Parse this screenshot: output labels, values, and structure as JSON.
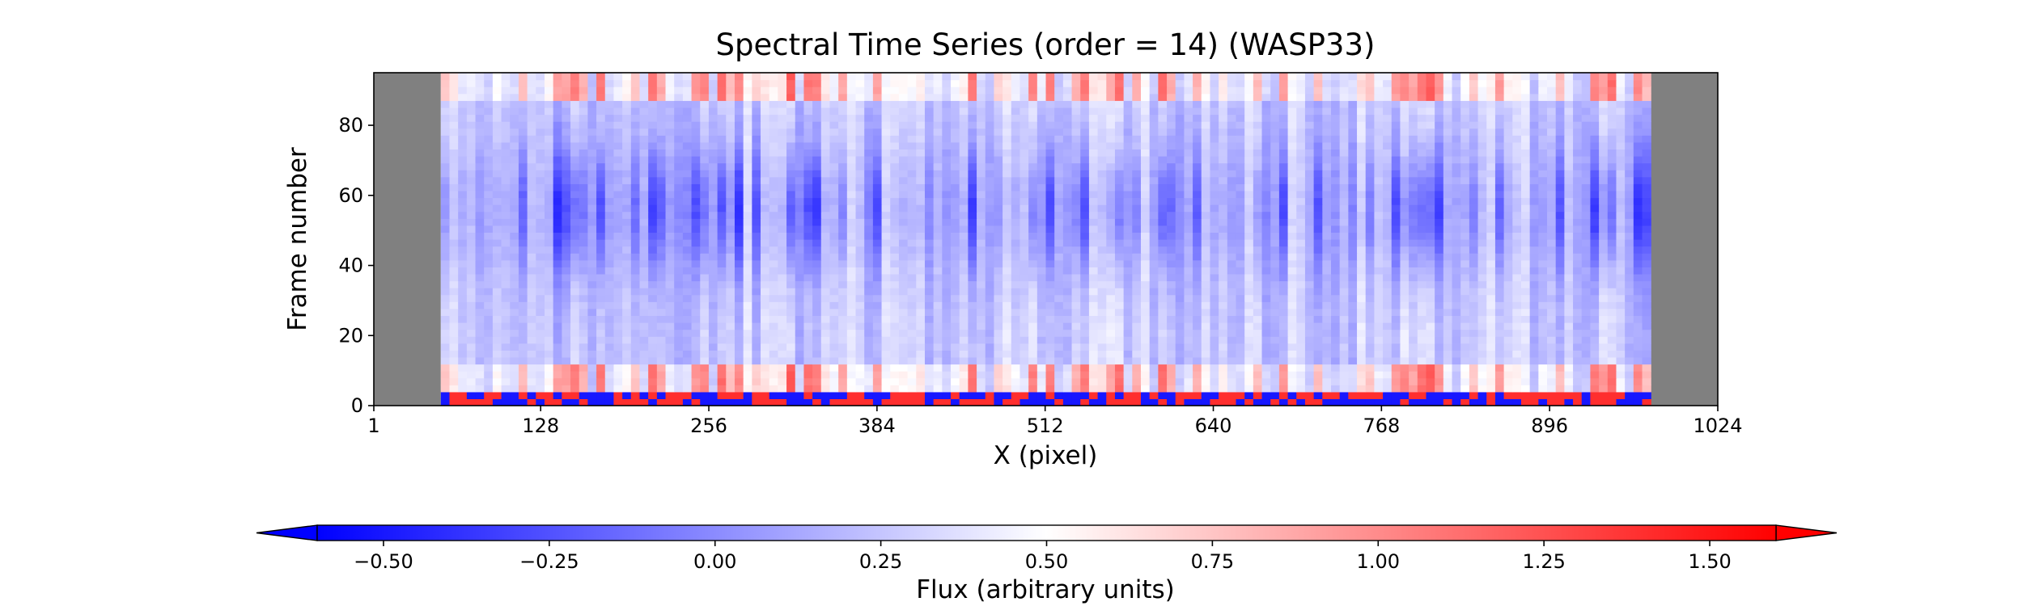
{
  "chart_data": {
    "type": "heatmap",
    "title": "Spectral Time Series (order = 14) (WASP33)",
    "xlabel": "X (pixel)",
    "ylabel": "Frame number",
    "xlim": [
      1,
      1024
    ],
    "ylim": [
      0,
      95
    ],
    "x_ticks": [
      1,
      128,
      256,
      384,
      512,
      640,
      768,
      896,
      1024
    ],
    "x_tick_labels": [
      "1",
      "128",
      "256",
      "384",
      "512",
      "640",
      "768",
      "896",
      "1024"
    ],
    "y_ticks": [
      0,
      20,
      40,
      60,
      80
    ],
    "y_tick_labels": [
      "0",
      "20",
      "40",
      "60",
      "80"
    ],
    "masked_x_ranges": [
      [
        1,
        52
      ],
      [
        973,
        1024
      ]
    ],
    "masked_color": "#808080",
    "data_x_range": [
      52,
      973
    ],
    "colormap": "bwr",
    "colormap_colors": [
      "#0000ff",
      "#ffffff",
      "#ff0000"
    ],
    "colorbar": {
      "label": "Flux (arbitrary units)",
      "vmin": -0.6,
      "vmax": 1.6,
      "extend": "both",
      "ticks": [
        -0.5,
        -0.25,
        0.0,
        0.25,
        0.5,
        0.75,
        1.0,
        1.25,
        1.5
      ],
      "tick_labels": [
        "−0.50",
        "−0.25",
        "0.00",
        "0.25",
        "0.50",
        "0.75",
        "1.00",
        "1.25",
        "1.50"
      ]
    },
    "grid": false
  }
}
